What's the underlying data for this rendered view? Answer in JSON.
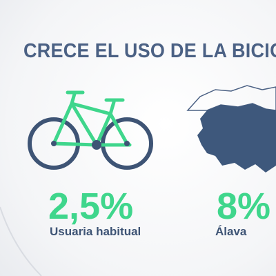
{
  "header": {
    "title": "CRECE EL USO DE LA BICICLE"
  },
  "stats": [
    {
      "value": "2,5%",
      "label": "Usuaria habitual"
    },
    {
      "value": "8%",
      "label": "Álava"
    }
  ]
}
